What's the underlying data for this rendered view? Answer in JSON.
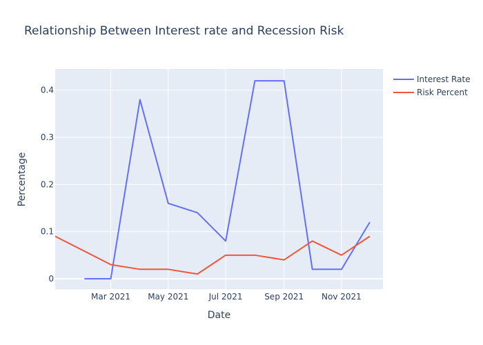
{
  "chart_data": {
    "type": "line",
    "title": "Relationship Between Interest rate and Recession Risk",
    "xlabel": "Date",
    "ylabel": "Percentage",
    "x_range": [
      "2021-01-01",
      "2021-12-15"
    ],
    "ylim": [
      -0.022,
      0.445
    ],
    "x_ticks": [
      {
        "date": "2021-03-01",
        "label": "Mar 2021"
      },
      {
        "date": "2021-05-01",
        "label": "May 2021"
      },
      {
        "date": "2021-07-01",
        "label": "Jul 2021"
      },
      {
        "date": "2021-09-01",
        "label": "Sep 2021"
      },
      {
        "date": "2021-11-01",
        "label": "Nov 2021"
      }
    ],
    "y_ticks": [
      {
        "value": 0,
        "label": "0"
      },
      {
        "value": 0.1,
        "label": "0.1"
      },
      {
        "value": 0.2,
        "label": "0.2"
      },
      {
        "value": 0.3,
        "label": "0.3"
      },
      {
        "value": 0.4,
        "label": "0.4"
      }
    ],
    "grid": true,
    "legend_position": "top-right",
    "series": [
      {
        "name": "Interest Rate",
        "color": "#636efa",
        "points": [
          {
            "x": "2021-02-01",
            "y": 0
          },
          {
            "x": "2021-03-01",
            "y": 0
          },
          {
            "x": "2021-04-01",
            "y": 0.38
          },
          {
            "x": "2021-05-01",
            "y": 0.16
          },
          {
            "x": "2021-06-01",
            "y": 0.14
          },
          {
            "x": "2021-07-01",
            "y": 0.08
          },
          {
            "x": "2021-08-01",
            "y": 0.42
          },
          {
            "x": "2021-09-01",
            "y": 0.42
          },
          {
            "x": "2021-10-01",
            "y": 0.02
          },
          {
            "x": "2021-11-01",
            "y": 0.02
          },
          {
            "x": "2021-12-01",
            "y": 0.12
          }
        ]
      },
      {
        "name": "Risk Percent",
        "color": "#ef553b",
        "points": [
          {
            "x": "2021-01-01",
            "y": 0.09
          },
          {
            "x": "2021-03-01",
            "y": 0.03
          },
          {
            "x": "2021-04-01",
            "y": 0.02
          },
          {
            "x": "2021-05-01",
            "y": 0.02
          },
          {
            "x": "2021-06-01",
            "y": 0.01
          },
          {
            "x": "2021-07-01",
            "y": 0.05
          },
          {
            "x": "2021-08-01",
            "y": 0.05
          },
          {
            "x": "2021-09-01",
            "y": 0.04
          },
          {
            "x": "2021-10-01",
            "y": 0.08
          },
          {
            "x": "2021-11-01",
            "y": 0.05
          },
          {
            "x": "2021-12-01",
            "y": 0.09
          }
        ]
      }
    ]
  }
}
